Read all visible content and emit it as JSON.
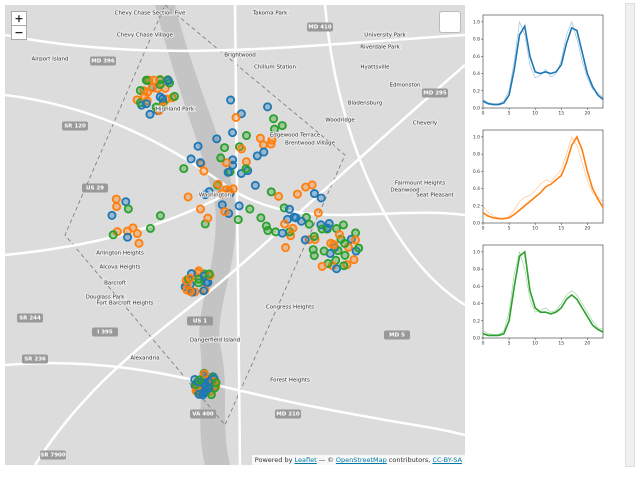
{
  "map": {
    "zoom_in": "+",
    "zoom_out": "−",
    "labels": [
      "Chevy Chase Section Five",
      "Takoma Park",
      "Brightwood",
      "Chillum Station",
      "Hyattsville",
      "Riverdale Park",
      "University Park",
      "Highland Park",
      "Edmonston",
      "Bladensburg",
      "Cheverly",
      "Edgewood Terrace",
      "Brentwood Village",
      "Woodridge",
      "Washington",
      "Deanwood",
      "Fairmount Heights",
      "Seat Pleasant",
      "Arlington Heights",
      "Alcova Heights",
      "Barcroft",
      "Douglass Park",
      "Fort Barcroft Heights",
      "Congress Heights",
      "Dangerfield Island",
      "Alexandria",
      "Forest Heights",
      "Chevy Chase Village",
      "Airport Island"
    ],
    "roads": [
      "MD 410",
      "MD 396",
      "US 29",
      "SR 120",
      "I 395",
      "SR 244",
      "SR 236",
      "VA 400",
      "MD 210",
      "MD 5",
      "MD 295",
      "SR 7900",
      "US 1"
    ],
    "attribution": [
      "Powered by ",
      "Leaflet",
      " — © ",
      "OpenStreetMap",
      " contributors, ",
      "CC-BY-SA"
    ]
  },
  "chart_data": [
    {
      "type": "line",
      "x": [
        0,
        1,
        2,
        3,
        4,
        5,
        6,
        7,
        8,
        9,
        10,
        11,
        12,
        13,
        14,
        15,
        16,
        17,
        18,
        19,
        20,
        21,
        22,
        23
      ],
      "series": [
        {
          "color": "#1f77b4",
          "values": [
            0.08,
            0.05,
            0.04,
            0.04,
            0.06,
            0.15,
            0.45,
            0.85,
            0.95,
            0.6,
            0.42,
            0.4,
            0.42,
            0.4,
            0.42,
            0.5,
            0.75,
            0.93,
            0.9,
            0.65,
            0.4,
            0.25,
            0.15,
            0.1
          ]
        },
        {
          "color": "#1f77b4",
          "values": [
            0.1,
            0.06,
            0.05,
            0.05,
            0.08,
            0.2,
            0.55,
            1.0,
            0.85,
            0.5,
            0.35,
            0.38,
            0.45,
            0.36,
            0.4,
            0.55,
            0.85,
            1.0,
            0.8,
            0.55,
            0.35,
            0.22,
            0.18,
            0.12
          ]
        }
      ],
      "xlim": [
        0,
        23
      ],
      "ylim": [
        0,
        1.08
      ],
      "xticks": [
        0,
        5,
        10,
        15,
        20
      ],
      "yticks": [
        {
          "value": 0,
          "label": "0.0"
        },
        {
          "value": 0.2,
          "label": "0.2"
        },
        {
          "value": 0.4,
          "label": "0.4"
        },
        {
          "value": 0.6,
          "label": "0.6"
        },
        {
          "value": 0.8,
          "label": "0.8"
        },
        {
          "value": 1,
          "label": "1.0"
        }
      ]
    },
    {
      "type": "line",
      "x": [
        0,
        1,
        2,
        3,
        4,
        5,
        6,
        7,
        8,
        9,
        10,
        11,
        12,
        13,
        14,
        15,
        16,
        17,
        18,
        19,
        20,
        21,
        22,
        23
      ],
      "series": [
        {
          "color": "#ff7f0e",
          "values": [
            0.12,
            0.08,
            0.06,
            0.05,
            0.05,
            0.06,
            0.1,
            0.15,
            0.2,
            0.25,
            0.3,
            0.35,
            0.42,
            0.45,
            0.5,
            0.55,
            0.7,
            0.9,
            1.0,
            0.85,
            0.6,
            0.4,
            0.28,
            0.18
          ]
        },
        {
          "color": "#ff7f0e",
          "values": [
            0.2,
            0.12,
            0.08,
            0.06,
            0.05,
            0.08,
            0.15,
            0.25,
            0.3,
            0.32,
            0.38,
            0.45,
            0.5,
            0.48,
            0.55,
            0.62,
            0.8,
            1.0,
            0.9,
            0.7,
            0.5,
            0.35,
            0.3,
            0.25
          ]
        }
      ],
      "xlim": [
        0,
        23
      ],
      "ylim": [
        0,
        1.08
      ],
      "xticks": [
        0,
        5,
        10,
        15,
        20
      ],
      "yticks": [
        {
          "value": 0,
          "label": "0.0"
        },
        {
          "value": 0.2,
          "label": "0.2"
        },
        {
          "value": 0.4,
          "label": "0.4"
        },
        {
          "value": 0.6,
          "label": "0.6"
        },
        {
          "value": 0.8,
          "label": "0.8"
        },
        {
          "value": 1,
          "label": "1.0"
        }
      ]
    },
    {
      "type": "line",
      "x": [
        0,
        1,
        2,
        3,
        4,
        5,
        6,
        7,
        8,
        9,
        10,
        11,
        12,
        13,
        14,
        15,
        16,
        17,
        18,
        19,
        20,
        21,
        22,
        23
      ],
      "series": [
        {
          "color": "#2ca02c",
          "values": [
            0.05,
            0.03,
            0.03,
            0.03,
            0.05,
            0.2,
            0.6,
            0.95,
            1.0,
            0.55,
            0.35,
            0.3,
            0.3,
            0.28,
            0.3,
            0.35,
            0.45,
            0.5,
            0.45,
            0.35,
            0.25,
            0.15,
            0.1,
            0.07
          ]
        },
        {
          "color": "#2ca02c",
          "values": [
            0.08,
            0.05,
            0.04,
            0.04,
            0.08,
            0.3,
            0.75,
            1.0,
            0.8,
            0.45,
            0.3,
            0.32,
            0.35,
            0.3,
            0.32,
            0.4,
            0.5,
            0.55,
            0.5,
            0.4,
            0.3,
            0.2,
            0.12,
            0.1
          ]
        }
      ],
      "xlim": [
        0,
        23
      ],
      "ylim": [
        0,
        1.08
      ],
      "xticks": [
        0,
        5,
        10,
        15,
        20
      ],
      "yticks": [
        {
          "value": 0,
          "label": "0.0"
        },
        {
          "value": 0.2,
          "label": "0.2"
        },
        {
          "value": 0.4,
          "label": "0.4"
        },
        {
          "value": 0.6,
          "label": "0.6"
        },
        {
          "value": 0.8,
          "label": "0.8"
        },
        {
          "value": 1,
          "label": "1.0"
        }
      ]
    }
  ]
}
